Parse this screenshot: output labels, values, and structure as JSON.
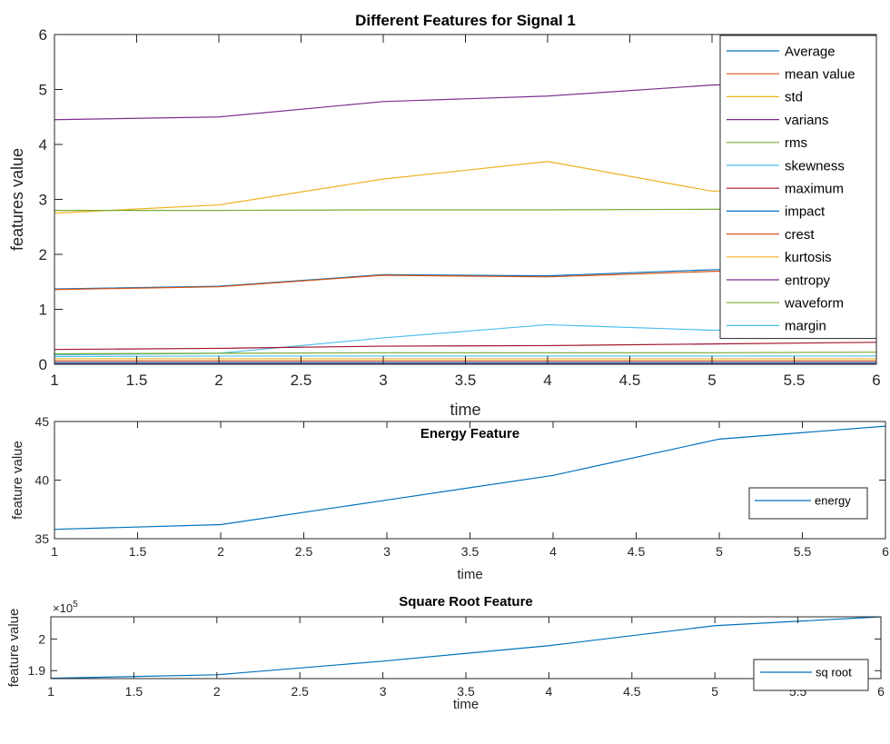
{
  "chart_data": [
    {
      "type": "line",
      "title": "Different Features for Signal 1",
      "xlabel": "time",
      "ylabel": "features value",
      "xlim": [
        1,
        6
      ],
      "ylim": [
        0,
        6
      ],
      "xticks": [
        1,
        1.5,
        2,
        2.5,
        3,
        3.5,
        4,
        4.5,
        5,
        5.5,
        6
      ],
      "yticks": [
        0,
        1,
        2,
        3,
        4,
        5,
        6
      ],
      "x": [
        1,
        2,
        3,
        4,
        5,
        6
      ],
      "legend_position": "top-right",
      "grid": false,
      "series": [
        {
          "name": "Average",
          "color": "#0072BD",
          "values": [
            1.37,
            1.42,
            1.63,
            1.61,
            1.72,
            1.78
          ]
        },
        {
          "name": "mean value",
          "color": "#D95319",
          "values": [
            1.36,
            1.41,
            1.62,
            1.59,
            1.69,
            1.75
          ]
        },
        {
          "name": "std",
          "color": "#EDB120",
          "values": [
            2.75,
            2.9,
            3.37,
            3.69,
            3.15,
            3.25
          ]
        },
        {
          "name": "varians",
          "color": "#7E2F8E",
          "values": [
            4.45,
            4.5,
            4.78,
            4.88,
            5.08,
            5.15
          ]
        },
        {
          "name": "rms",
          "color": "#77AC30",
          "values": [
            2.8,
            2.8,
            2.81,
            2.81,
            2.82,
            2.83
          ]
        },
        {
          "name": "skewness",
          "color": "#4DBEEE",
          "values": [
            0.17,
            0.2,
            0.48,
            0.72,
            0.62,
            0.66
          ]
        },
        {
          "name": "maximum",
          "color": "#A2142F",
          "values": [
            0.27,
            0.29,
            0.33,
            0.34,
            0.37,
            0.4
          ]
        },
        {
          "name": "impact",
          "color": "#0072BD",
          "values": [
            0.03,
            0.03,
            0.03,
            0.03,
            0.03,
            0.03
          ]
        },
        {
          "name": "crest",
          "color": "#D95319",
          "values": [
            0.06,
            0.06,
            0.06,
            0.06,
            0.06,
            0.06
          ]
        },
        {
          "name": "kurtosis",
          "color": "#EDB120",
          "values": [
            0.1,
            0.1,
            0.1,
            0.1,
            0.1,
            0.1
          ]
        },
        {
          "name": "entropy",
          "color": "#7E2F8E",
          "values": [
            0.01,
            0.01,
            0.01,
            0.01,
            0.01,
            0.01
          ]
        },
        {
          "name": "waveform",
          "color": "#77AC30",
          "values": [
            0.19,
            0.2,
            0.21,
            0.21,
            0.21,
            0.22
          ]
        },
        {
          "name": "margin",
          "color": "#4DBEEE",
          "values": [
            0.14,
            0.15,
            0.15,
            0.15,
            0.15,
            0.15
          ]
        }
      ]
    },
    {
      "type": "line",
      "title": "Energy Feature",
      "xlabel": "time",
      "ylabel": "feature value",
      "xlim": [
        1,
        6
      ],
      "ylim": [
        35,
        45
      ],
      "xticks": [
        1,
        1.5,
        2,
        2.5,
        3,
        3.5,
        4,
        4.5,
        5,
        5.5,
        6
      ],
      "yticks": [
        35,
        40,
        45
      ],
      "x": [
        1,
        2,
        3,
        4,
        5,
        6
      ],
      "legend_position": "right",
      "grid": false,
      "series": [
        {
          "name": "energy",
          "color": "#0072BD",
          "values": [
            35.8,
            36.2,
            38.3,
            40.4,
            43.5,
            44.6
          ]
        }
      ]
    },
    {
      "type": "line",
      "title": "Square Root Feature",
      "xlabel": "time",
      "ylabel": "feature value",
      "exponent_label": "×10",
      "exponent_power": "5",
      "xlim": [
        1,
        6
      ],
      "ylim": [
        1.875,
        2.07
      ],
      "xticks": [
        1,
        1.5,
        2,
        2.5,
        3,
        3.5,
        4,
        4.5,
        5,
        5.5,
        6
      ],
      "yticks": [
        1.9,
        2
      ],
      "ytick_labels": [
        "1.9",
        "2"
      ],
      "x": [
        1,
        2,
        3,
        4,
        5,
        6
      ],
      "legend_position": "right",
      "grid": false,
      "series": [
        {
          "name": "sq root",
          "color": "#0072BD",
          "values": [
            1.876,
            1.887,
            1.93,
            1.979,
            2.042,
            2.07
          ]
        }
      ]
    }
  ]
}
